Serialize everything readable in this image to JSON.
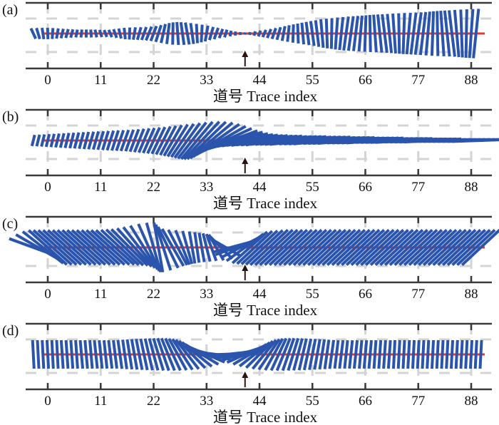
{
  "colors": {
    "stick": "#2b55ad",
    "baseline": "#e8392b",
    "axis": "#3a3a3a",
    "grid": "#d4d4d4",
    "arrow": "#2a1410"
  },
  "chart_data": [
    {
      "type": "stick-plot",
      "panel_label": "(a)",
      "xlabel": "道号 Trace index",
      "xlim": [
        -3,
        91
      ],
      "xticks": [
        0,
        11,
        22,
        33,
        44,
        55,
        66,
        77,
        88
      ],
      "marker_trace": 41,
      "grid": true,
      "traces": [
        -3,
        -2,
        -1,
        0,
        1,
        2,
        3,
        4,
        5,
        6,
        7,
        8,
        9,
        10,
        11,
        12,
        13,
        14,
        15,
        16,
        17,
        18,
        19,
        20,
        21,
        22,
        23,
        24,
        25,
        26,
        27,
        28,
        29,
        30,
        31,
        32,
        33,
        34,
        35,
        36,
        37,
        38,
        39,
        40,
        41,
        42,
        43,
        44,
        45,
        46,
        47,
        48,
        49,
        50,
        51,
        52,
        53,
        54,
        55,
        56,
        57,
        58,
        59,
        60,
        61,
        62,
        63,
        64,
        65,
        66,
        67,
        68,
        69,
        70,
        71,
        72,
        73,
        74,
        75,
        76,
        77,
        78,
        79,
        80,
        81,
        82,
        83,
        84,
        85,
        86,
        87,
        88,
        89,
        90
      ],
      "amplitude": [
        0.2,
        0.2,
        0.2,
        0.2,
        0.19,
        0.18,
        0.17,
        0.16,
        0.15,
        0.14,
        0.14,
        0.14,
        0.14,
        0.14,
        0.13,
        0.13,
        0.14,
        0.16,
        0.18,
        0.2,
        0.21,
        0.22,
        0.23,
        0.24,
        0.26,
        0.28,
        0.31,
        0.34,
        0.37,
        0.39,
        0.4,
        0.4,
        0.39,
        0.37,
        0.34,
        0.31,
        0.28,
        0.24,
        0.21,
        0.17,
        0.14,
        0.1,
        0.07,
        0.05,
        0.04,
        0.05,
        0.08,
        0.11,
        0.14,
        0.17,
        0.2,
        0.23,
        0.26,
        0.29,
        0.32,
        0.35,
        0.38,
        0.41,
        0.44,
        0.47,
        0.5,
        0.52,
        0.54,
        0.56,
        0.58,
        0.6,
        0.61,
        0.62,
        0.63,
        0.64,
        0.65,
        0.66,
        0.67,
        0.68,
        0.69,
        0.7,
        0.71,
        0.72,
        0.73,
        0.74,
        0.75,
        0.76,
        0.77,
        0.78,
        0.79,
        0.8,
        0.81,
        0.82,
        0.83,
        0.84,
        0.85,
        0.86,
        0.87,
        0.88
      ],
      "angle_deg": [
        -25,
        -17,
        -9,
        -2,
        4,
        10,
        14,
        16,
        15,
        12,
        7,
        1,
        -5,
        -12,
        -18,
        -22,
        -23,
        -20,
        -14,
        -6,
        2,
        10,
        16,
        20,
        22,
        21,
        18,
        13,
        7,
        1,
        -4,
        -8,
        -10,
        -8,
        -3,
        3,
        10,
        16,
        20,
        21,
        18,
        12,
        6,
        3,
        6,
        12,
        18,
        22,
        24,
        23,
        20,
        16,
        11,
        6,
        2,
        -2,
        -5,
        -7,
        -8,
        -7,
        -5,
        -2,
        1,
        4,
        6,
        8,
        8,
        7,
        5,
        2,
        -1,
        -4,
        -6,
        -7,
        -6,
        -4,
        -1,
        2,
        5,
        7,
        8,
        7,
        5,
        2,
        -1,
        -4,
        -6,
        -7,
        -5,
        -2,
        1,
        4,
        6
      ]
    },
    {
      "type": "stick-plot",
      "panel_label": "(b)",
      "xlabel": "道号 Trace index",
      "xlim": [
        -3,
        91
      ],
      "xticks": [
        0,
        11,
        22,
        33,
        44,
        55,
        66,
        77,
        88
      ],
      "marker_trace": 41,
      "grid": true,
      "traces": [
        -3,
        -2,
        -1,
        0,
        1,
        2,
        3,
        4,
        5,
        6,
        7,
        8,
        9,
        10,
        11,
        12,
        13,
        14,
        15,
        16,
        17,
        18,
        19,
        20,
        21,
        22,
        23,
        24,
        25,
        26,
        27,
        28,
        29,
        30,
        31,
        32,
        33,
        34,
        35,
        36,
        37,
        38,
        39,
        40,
        41,
        42,
        43,
        44,
        45,
        46,
        47,
        48,
        49,
        50,
        51,
        52,
        53,
        54,
        55,
        56,
        57,
        58,
        59,
        60,
        61,
        62,
        63,
        64,
        65,
        66,
        67,
        68,
        69,
        70,
        71,
        72,
        73,
        74,
        75,
        76,
        77,
        78,
        79,
        80,
        81,
        82,
        83,
        84,
        85,
        86,
        87,
        88,
        89,
        90
      ],
      "amplitude": [
        0.2,
        0.21,
        0.22,
        0.23,
        0.24,
        0.25,
        0.26,
        0.27,
        0.28,
        0.29,
        0.3,
        0.31,
        0.32,
        0.33,
        0.34,
        0.35,
        0.36,
        0.37,
        0.38,
        0.39,
        0.4,
        0.42,
        0.44,
        0.46,
        0.48,
        0.5,
        0.52,
        0.55,
        0.58,
        0.62,
        0.66,
        0.7,
        0.75,
        0.8,
        0.85,
        0.9,
        0.94,
        0.97,
        0.99,
        1.0,
        1.0,
        1.0,
        1.0,
        1.0,
        1.0,
        1.0,
        1.0,
        1.0,
        1.0,
        1.0,
        1.0,
        1.0,
        1.0,
        1.0,
        1.0,
        1.0,
        1.0,
        1.0,
        1.0,
        1.0,
        1.0,
        1.0,
        1.0,
        1.0,
        1.0,
        1.0,
        1.0,
        1.0,
        1.0,
        1.0,
        1.0,
        1.0,
        1.0,
        1.0,
        1.0,
        1.0,
        1.0,
        1.0,
        1.0,
        1.0,
        1.0,
        1.0,
        1.0,
        1.0,
        1.0,
        1.0,
        1.0,
        1.0,
        1.0,
        1.0,
        1.0,
        1.0,
        1.0,
        1.0
      ],
      "angle_deg": [
        14,
        14,
        14,
        14,
        14,
        14,
        14,
        14,
        14,
        15,
        15,
        15,
        16,
        16,
        17,
        17,
        18,
        18,
        19,
        20,
        20,
        21,
        22,
        23,
        24,
        25,
        26,
        27,
        28,
        30,
        32,
        34,
        36,
        38,
        40,
        43,
        46,
        50,
        55,
        60,
        65,
        70,
        73,
        76,
        78,
        79,
        80,
        80,
        81,
        81,
        81,
        82,
        82,
        82,
        82,
        82,
        83,
        83,
        83,
        83,
        83,
        84,
        84,
        84,
        84,
        84,
        85,
        85,
        85,
        85,
        85,
        85,
        86,
        86,
        86,
        86,
        86,
        86,
        87,
        87,
        87,
        87,
        87,
        87,
        88,
        88,
        88,
        88,
        88,
        88,
        88,
        88,
        88,
        88
      ]
    },
    {
      "type": "stick-plot",
      "panel_label": "(c)",
      "xlabel": "道号 Trace index",
      "xlim": [
        -3,
        91
      ],
      "xticks": [
        0,
        11,
        22,
        33,
        44,
        55,
        66,
        77,
        88
      ],
      "marker_trace": 41,
      "grid": true,
      "traces": [
        -3,
        -2,
        -1,
        0,
        1,
        2,
        3,
        4,
        5,
        6,
        7,
        8,
        9,
        10,
        11,
        12,
        13,
        14,
        15,
        16,
        17,
        18,
        19,
        20,
        21,
        22,
        23,
        24,
        25,
        26,
        27,
        28,
        29,
        30,
        31,
        32,
        33,
        34,
        35,
        36,
        37,
        38,
        39,
        40,
        41,
        42,
        43,
        44,
        45,
        46,
        47,
        48,
        49,
        50,
        51,
        52,
        53,
        54,
        55,
        56,
        57,
        58,
        59,
        60,
        61,
        62,
        63,
        64,
        65,
        66,
        67,
        68,
        69,
        70,
        71,
        72,
        73,
        74,
        75,
        76,
        77,
        78,
        79,
        80,
        81,
        82,
        83,
        84,
        85,
        86,
        87,
        88,
        89,
        90
      ],
      "amplitude": [
        0.9,
        0.9,
        0.9,
        0.9,
        0.9,
        0.9,
        0.9,
        0.9,
        0.9,
        0.9,
        0.9,
        0.9,
        0.9,
        0.9,
        0.9,
        0.9,
        0.9,
        0.9,
        0.9,
        0.9,
        0.9,
        0.9,
        0.9,
        0.9,
        0.9,
        0.9,
        0.88,
        0.84,
        0.8,
        0.75,
        0.7,
        0.65,
        0.6,
        0.57,
        0.54,
        0.52,
        0.51,
        0.5,
        0.52,
        0.56,
        0.62,
        0.68,
        0.74,
        0.78,
        0.8,
        0.82,
        0.84,
        0.86,
        0.88,
        0.9,
        0.9,
        0.9,
        0.9,
        0.9,
        0.9,
        0.9,
        0.9,
        0.9,
        0.9,
        0.9,
        0.9,
        0.9,
        0.9,
        0.9,
        0.9,
        0.9,
        0.9,
        0.9,
        0.9,
        0.9,
        0.9,
        0.9,
        0.9,
        0.9,
        0.9,
        0.9,
        0.9,
        0.9,
        0.9,
        0.9,
        0.9,
        0.9,
        0.9,
        0.9,
        0.9,
        0.9,
        0.9,
        0.9,
        0.9,
        0.9,
        0.9,
        0.9,
        0.9,
        0.9
      ],
      "angle_deg": [
        -70,
        -60,
        -52,
        -48,
        -48,
        -48,
        -48,
        -48,
        -48,
        -48,
        -48,
        -48,
        -48,
        -48,
        -48,
        -48,
        -48,
        -48,
        -47,
        -46,
        -45,
        -42,
        -38,
        -32,
        -24,
        -16,
        -10,
        -18,
        -26,
        -30,
        -28,
        -22,
        -16,
        -10,
        -8,
        -10,
        -14,
        -20,
        -30,
        -45,
        -60,
        75,
        70,
        62,
        54,
        48,
        47,
        47,
        47,
        47,
        47,
        47,
        47,
        47,
        47,
        47,
        47,
        47,
        47,
        47,
        47,
        47,
        47,
        47,
        47,
        47,
        47,
        47,
        47,
        47,
        47,
        47,
        47,
        47,
        47,
        47,
        47,
        47,
        47,
        47,
        47,
        47,
        47,
        47,
        47,
        47,
        47,
        47,
        47,
        47,
        47,
        47,
        47,
        47
      ]
    },
    {
      "type": "stick-plot",
      "panel_label": "(d)",
      "xlabel": "道号 Trace index",
      "xlim": [
        -3,
        91
      ],
      "xticks": [
        0,
        11,
        22,
        33,
        44,
        55,
        66,
        77,
        88
      ],
      "marker_trace": 41,
      "grid": true,
      "traces": [
        -3,
        -2,
        -1,
        0,
        1,
        2,
        3,
        4,
        5,
        6,
        7,
        8,
        9,
        10,
        11,
        12,
        13,
        14,
        15,
        16,
        17,
        18,
        19,
        20,
        21,
        22,
        23,
        24,
        25,
        26,
        27,
        28,
        29,
        30,
        31,
        32,
        33,
        34,
        35,
        36,
        37,
        38,
        39,
        40,
        41,
        42,
        43,
        44,
        45,
        46,
        47,
        48,
        49,
        50,
        51,
        52,
        53,
        54,
        55,
        56,
        57,
        58,
        59,
        60,
        61,
        62,
        63,
        64,
        65,
        66,
        67,
        68,
        69,
        70,
        71,
        72,
        73,
        74,
        75,
        76,
        77,
        78,
        79,
        80,
        81,
        82,
        83,
        84,
        85,
        86,
        87,
        88,
        89,
        90
      ],
      "amplitude": [
        0.5,
        0.5,
        0.5,
        0.5,
        0.5,
        0.5,
        0.5,
        0.5,
        0.5,
        0.5,
        0.5,
        0.5,
        0.5,
        0.5,
        0.5,
        0.5,
        0.5,
        0.5,
        0.51,
        0.52,
        0.53,
        0.54,
        0.55,
        0.56,
        0.57,
        0.58,
        0.59,
        0.6,
        0.61,
        0.62,
        0.63,
        0.64,
        0.65,
        0.66,
        0.67,
        0.68,
        0.69,
        0.7,
        0.71,
        0.72,
        0.73,
        0.72,
        0.71,
        0.7,
        0.69,
        0.68,
        0.67,
        0.66,
        0.65,
        0.64,
        0.63,
        0.62,
        0.61,
        0.6,
        0.59,
        0.58,
        0.57,
        0.56,
        0.55,
        0.54,
        0.53,
        0.52,
        0.51,
        0.5,
        0.5,
        0.5,
        0.5,
        0.5,
        0.5,
        0.5,
        0.5,
        0.5,
        0.5,
        0.5,
        0.5,
        0.5,
        0.5,
        0.5,
        0.5,
        0.5,
        0.5,
        0.5,
        0.5,
        0.5,
        0.5,
        0.5,
        0.5,
        0.5,
        0.5,
        0.5,
        0.5,
        0.5,
        0.5,
        0.5
      ],
      "angle_deg": [
        -3,
        -3,
        -3,
        -3,
        -3,
        -3,
        -4,
        -4,
        -4,
        -4,
        -5,
        -5,
        -5,
        -6,
        -6,
        -6,
        -7,
        -7,
        -8,
        -8,
        -9,
        -10,
        -11,
        -12,
        -13,
        -15,
        -17,
        -19,
        -22,
        -25,
        -29,
        -33,
        -38,
        -44,
        -51,
        -59,
        -67,
        -75,
        -83,
        88,
        84,
        82,
        78,
        72,
        66,
        59,
        52,
        45,
        39,
        34,
        29,
        25,
        22,
        19,
        17,
        15,
        13,
        12,
        11,
        10,
        9,
        8,
        8,
        7,
        7,
        6,
        6,
        6,
        5,
        5,
        5,
        4,
        4,
        4,
        4,
        3,
        3,
        3,
        3,
        3,
        3,
        3,
        3,
        3,
        3,
        3,
        3,
        3,
        3,
        3,
        3,
        3,
        3,
        3
      ]
    }
  ]
}
